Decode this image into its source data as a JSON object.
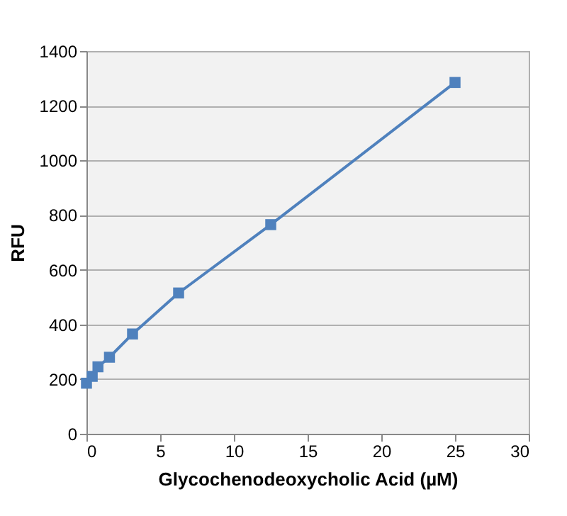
{
  "chart_data": {
    "type": "line",
    "xlabel": "Glycochenodeoxycholic Acid (µM)",
    "ylabel": "RFU",
    "x": [
      0,
      0.39,
      0.78,
      1.56,
      3.125,
      6.25,
      12.5,
      25
    ],
    "series": [
      {
        "color": "#4f81bd",
        "values": [
          185,
          210,
          245,
          280,
          365,
          515,
          765,
          1285
        ]
      }
    ],
    "xlim": [
      0,
      30
    ],
    "xticks": [
      0,
      5,
      10,
      15,
      20,
      25,
      30
    ],
    "ylim": [
      0,
      1400
    ],
    "yticks": [
      0,
      200,
      400,
      600,
      800,
      1000,
      1200,
      1400
    ],
    "grid": "y",
    "marker": "square",
    "line_style": "solid",
    "legend": false
  }
}
